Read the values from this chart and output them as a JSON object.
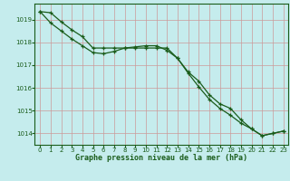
{
  "title": "Graphe pression niveau de la mer (hPa)",
  "background_color": "#c5eced",
  "grid_color": "#cc9999",
  "line_color": "#1a5c1a",
  "xlim": [
    -0.5,
    23.5
  ],
  "ylim": [
    1013.5,
    1019.7
  ],
  "yticks": [
    1014,
    1015,
    1016,
    1017,
    1018,
    1019
  ],
  "xticks": [
    0,
    1,
    2,
    3,
    4,
    5,
    6,
    7,
    8,
    9,
    10,
    11,
    12,
    13,
    14,
    15,
    16,
    17,
    18,
    19,
    20,
    21,
    22,
    23
  ],
  "series1_x": [
    0,
    1,
    2,
    3,
    4,
    5,
    6,
    7,
    8,
    9,
    10,
    11,
    12,
    13,
    14,
    15,
    16,
    17,
    18,
    19,
    20,
    21,
    22,
    23
  ],
  "series1_y": [
    1019.35,
    1019.3,
    1018.9,
    1018.55,
    1018.25,
    1017.75,
    1017.75,
    1017.75,
    1017.75,
    1017.75,
    1017.75,
    1017.75,
    1017.75,
    1017.3,
    1016.65,
    1016.05,
    1015.5,
    1015.1,
    1014.8,
    1014.45,
    1014.2,
    1013.9,
    1014.0,
    1014.1
  ],
  "series2_x": [
    0,
    1,
    2,
    3,
    4,
    5,
    6,
    7,
    8,
    9,
    10,
    11,
    12,
    13,
    14,
    15,
    16,
    17,
    18,
    19,
    20,
    21,
    22,
    23
  ],
  "series2_y": [
    1019.35,
    1018.85,
    1018.5,
    1018.15,
    1017.85,
    1017.55,
    1017.5,
    1017.6,
    1017.75,
    1017.8,
    1017.85,
    1017.85,
    1017.65,
    1017.3,
    1016.7,
    1016.3,
    1015.7,
    1015.3,
    1015.1,
    1014.6,
    1014.2,
    1013.9,
    1014.0,
    1014.1
  ]
}
